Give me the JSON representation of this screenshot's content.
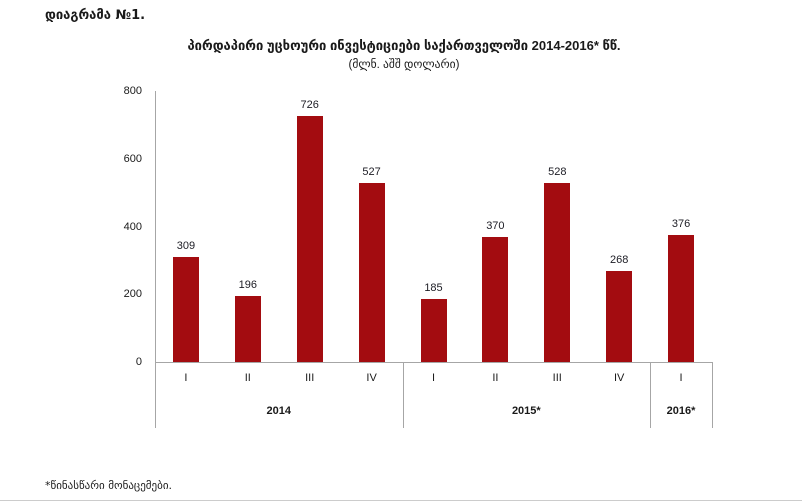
{
  "page": {
    "header": "დიაგრამა №1.",
    "footnote": "*წინასწარი მონაცემები."
  },
  "chart_data": {
    "type": "bar",
    "title": "პირდაპირი უცხოური ინვესტიციები საქართველოში  2014-2016* წწ.",
    "subtitle": "(მლნ. აშშ დოლარი)",
    "xlabel": "",
    "ylabel": "",
    "ylim": [
      0,
      800
    ],
    "yticks": [
      0,
      200,
      400,
      600,
      800
    ],
    "grid": false,
    "legend_position": "none",
    "bar_color": "#a30c10",
    "axis_color": "#a6a6a6",
    "groups": [
      {
        "year": "2014",
        "quarters": [
          "I",
          "II",
          "III",
          "IV"
        ],
        "values": [
          309,
          196,
          726,
          527
        ]
      },
      {
        "year": "2015*",
        "quarters": [
          "I",
          "II",
          "III",
          "IV"
        ],
        "values": [
          185,
          370,
          528,
          268
        ]
      },
      {
        "year": "2016*",
        "quarters": [
          "I"
        ],
        "values": [
          376
        ]
      }
    ]
  }
}
